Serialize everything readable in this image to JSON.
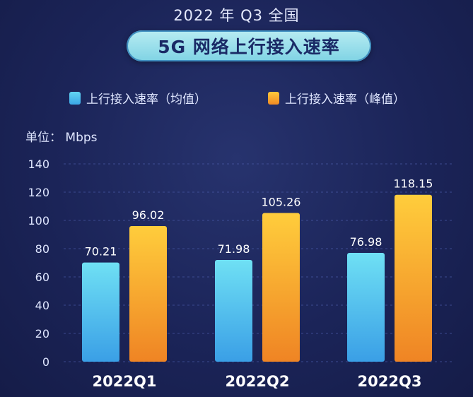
{
  "header": {
    "subtitle": "2022 年 Q3 全国",
    "title": "5G 网络上行接入速率"
  },
  "legend": [
    {
      "label": "上行接入速率（均值）",
      "color": "#4fc3ee"
    },
    {
      "label": "上行接入速率（峰值）",
      "color": "#f5a623"
    }
  ],
  "unit": "单位：  Mbps",
  "chart_data": {
    "type": "bar",
    "categories": [
      "2022Q1",
      "2022Q2",
      "2022Q3"
    ],
    "series": [
      {
        "name": "上行接入速率（均值）",
        "values": [
          70.21,
          71.98,
          76.98
        ],
        "labels": [
          "70.21",
          "71.98",
          "76.98"
        ]
      },
      {
        "name": "上行接入速率（峰值）",
        "values": [
          96.02,
          105.26,
          118.15
        ],
        "labels": [
          "96.02",
          "105.26",
          "118.15"
        ]
      }
    ],
    "ylabel": "单位：  Mbps",
    "ylim": [
      0,
      140
    ],
    "yticks": [
      0,
      20,
      40,
      60,
      80,
      100,
      120,
      140
    ],
    "grid": true,
    "legend_position": "top"
  }
}
